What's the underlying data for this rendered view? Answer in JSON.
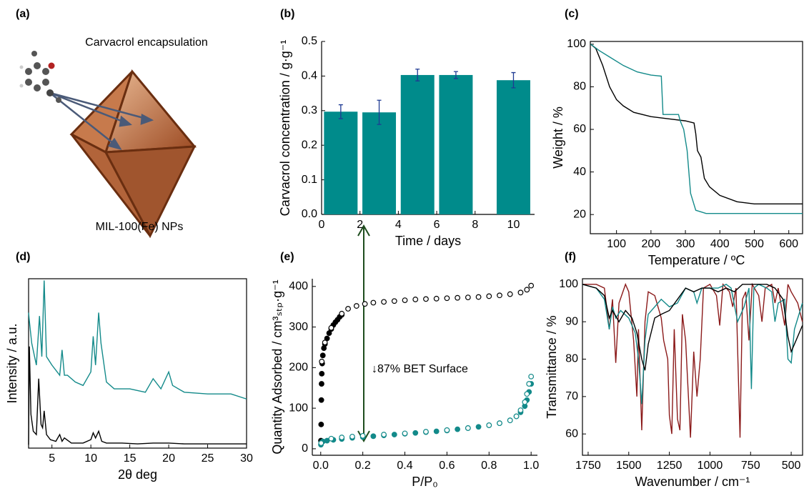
{
  "illustration": {
    "label": "(a)",
    "title": "Carvacrol encapsulation",
    "caption": "MIL-100(Fe) NPs"
  },
  "chart_data": [
    {
      "type": "bar",
      "label": "(b)",
      "xlabel": "Time / days",
      "ylabel": "Carvacrol concentration / g·g⁻¹",
      "x": [
        1,
        3,
        5,
        7,
        10
      ],
      "values": [
        0.297,
        0.295,
        0.403,
        0.403,
        0.388
      ],
      "errors": [
        0.02,
        0.035,
        0.017,
        0.01,
        0.022
      ],
      "color": "#008b8b",
      "error_color": "#1f3a93",
      "xlim": [
        0,
        11.1
      ],
      "xticks": [
        0,
        2,
        4,
        6,
        8,
        10
      ],
      "ylim": [
        0,
        0.5
      ],
      "yticks": [
        {
          "value": 0,
          "label": "0.0"
        },
        0.1,
        0.2,
        0.3,
        0.4,
        0.5
      ],
      "frame": false
    },
    {
      "type": "line",
      "label": "(c)",
      "xlabel": "Temperature / ºC",
      "ylabel": "Weight / %",
      "series": [
        {
          "color": "#000000",
          "x": [
            25,
            40,
            60,
            80,
            100,
            120,
            150,
            200,
            250,
            300,
            325,
            330,
            335,
            345,
            355,
            370,
            400,
            450,
            500,
            640
          ],
          "values": [
            100,
            98,
            90,
            80,
            74,
            71,
            68,
            66,
            65,
            64,
            63,
            58,
            50,
            47,
            37,
            33,
            29,
            26,
            25,
            25
          ]
        },
        {
          "color": "#138a8a",
          "x": [
            25,
            50,
            80,
            120,
            160,
            200,
            230,
            235,
            280,
            285,
            295,
            305,
            315,
            330,
            360,
            640
          ],
          "values": [
            100,
            97,
            94,
            90,
            87,
            85.5,
            85,
            67,
            67,
            64,
            60,
            50,
            30,
            22,
            20.5,
            20.5
          ]
        }
      ],
      "xlim": [
        24,
        640
      ],
      "xticks": [
        100,
        200,
        300,
        400,
        500,
        600
      ],
      "ylim": [
        11,
        101.3
      ],
      "yticks": [
        20,
        40,
        60,
        80,
        100
      ],
      "frame": true
    },
    {
      "type": "line",
      "label": "(d)",
      "xlabel": "2θ deg",
      "ylabel": "Intensity / a.u.",
      "series": [
        {
          "color": "#138a8a",
          "x": [
            2,
            2.1,
            2.4,
            3.0,
            3.4,
            3.7,
            4.0,
            4.3,
            5,
            6,
            6.3,
            6.6,
            7,
            8,
            9,
            10,
            10.3,
            10.6,
            11,
            11.3,
            12,
            13,
            15,
            17,
            18,
            19,
            20,
            20.5,
            22,
            25,
            28,
            30
          ],
          "values": [
            80,
            75,
            62,
            49,
            78,
            54,
            99,
            54,
            49,
            43,
            58,
            43,
            43,
            39,
            37,
            45,
            66,
            49,
            80,
            62,
            39,
            35,
            35,
            33,
            41,
            35,
            45,
            37,
            33,
            32,
            32,
            29
          ]
        },
        {
          "color": "#000000",
          "x": [
            2,
            2.1,
            2.3,
            2.6,
            3.0,
            3.3,
            3.6,
            3.8,
            4.0,
            4.3,
            4.8,
            5.5,
            6.0,
            6.3,
            6.6,
            7.5,
            9,
            10.0,
            10.3,
            10.6,
            11.0,
            11.4,
            12,
            14,
            16,
            18,
            20,
            22,
            25,
            28,
            30
          ],
          "values": [
            2,
            60,
            20,
            10,
            8,
            41,
            14,
            12,
            22,
            8,
            5,
            4,
            8,
            4,
            6,
            3,
            3,
            5,
            9,
            6,
            10,
            4,
            3,
            3,
            2.5,
            3,
            3,
            2.5,
            2.5,
            2.5,
            2.5
          ]
        }
      ],
      "xlim": [
        2,
        30
      ],
      "xticks": [
        5,
        10,
        15,
        20,
        25,
        30
      ],
      "ylim": [
        0,
        100
      ],
      "frame": true
    },
    {
      "type": "scatter",
      "label": "(e)",
      "xlabel": "P/P₀",
      "ylabel": "Quantity Adsorbed / cm³ₛₜₚ·g⁻¹",
      "annotation": "↓87% BET Surface",
      "annotation_color": "#1e4d1e",
      "series": [
        {
          "color": "#000000",
          "marker": "filled",
          "x": [
            0.001,
            0.002,
            0.003,
            0.004,
            0.005,
            0.007,
            0.01,
            0.015,
            0.02,
            0.03,
            0.04,
            0.05,
            0.06,
            0.07,
            0.08,
            0.09,
            0.1
          ],
          "values": [
            20,
            60,
            120,
            160,
            185,
            210,
            230,
            248,
            258,
            272,
            285,
            295,
            305,
            312,
            318,
            325,
            330
          ]
        },
        {
          "color": "#000000",
          "marker": "open",
          "x": [
            0.005,
            0.02,
            0.05,
            0.1,
            0.13,
            0.17,
            0.21,
            0.25,
            0.3,
            0.35,
            0.4,
            0.45,
            0.5,
            0.55,
            0.6,
            0.65,
            0.7,
            0.75,
            0.8,
            0.85,
            0.9,
            0.95,
            0.98,
            1.0
          ],
          "values": [
            215,
            262,
            298,
            333,
            345,
            352,
            357,
            360,
            362,
            364,
            366,
            368,
            369,
            370,
            371,
            372,
            373,
            374,
            376,
            378,
            381,
            385,
            392,
            402
          ]
        },
        {
          "color": "#138a8a",
          "marker": "filled",
          "x": [
            0.001,
            0.003,
            0.01,
            0.03,
            0.06,
            0.1,
            0.15,
            0.2,
            0.25,
            0.3,
            0.35,
            0.4,
            0.45,
            0.5,
            0.55,
            0.6,
            0.65,
            0.7,
            0.75,
            0.8,
            0.85,
            0.9,
            0.93,
            0.95,
            0.97,
            0.98,
            0.99,
            1.0
          ],
          "values": [
            10,
            15,
            18,
            20,
            22,
            24,
            27,
            29,
            31,
            33,
            35,
            37,
            39,
            41,
            43,
            45,
            48,
            51,
            54,
            58,
            63,
            70,
            80,
            90,
            105,
            120,
            140,
            160
          ]
        },
        {
          "color": "#138a8a",
          "marker": "open",
          "x": [
            0.002,
            0.05,
            0.1,
            0.15,
            0.2,
            0.3,
            0.4,
            0.5,
            0.6,
            0.7,
            0.8,
            0.85,
            0.9,
            0.93,
            0.95,
            0.97,
            0.98,
            0.99,
            1.0
          ],
          "values": [
            14,
            25,
            28,
            30,
            32,
            35,
            38,
            42,
            46,
            51,
            58,
            63,
            70,
            80,
            95,
            115,
            135,
            160,
            178
          ]
        }
      ],
      "xlim": [
        -0.04,
        1.03
      ],
      "xticks": [
        {
          "value": 0,
          "label": "0.0"
        },
        0.2,
        0.4,
        0.6,
        0.8,
        {
          "value": 1,
          "label": "1.0"
        }
      ],
      "ylim": [
        -16,
        419
      ],
      "yticks": [
        0,
        100,
        200,
        300,
        400
      ],
      "frame": false
    },
    {
      "type": "line",
      "label": "(f)",
      "xlabel": "Wavenumber / cm⁻¹",
      "ylabel": "Transmittance / %",
      "series": [
        {
          "color": "#8b1a1a",
          "x": [
            1785,
            1700,
            1650,
            1620,
            1600,
            1580,
            1560,
            1520,
            1500,
            1470,
            1450,
            1440,
            1420,
            1400,
            1380,
            1340,
            1300,
            1285,
            1260,
            1250,
            1235,
            1220,
            1200,
            1185,
            1170,
            1150,
            1120,
            1100,
            1080,
            1060,
            1040,
            1000,
            960,
            940,
            920,
            880,
            860,
            840,
            815,
            800,
            780,
            760,
            740,
            700,
            680,
            660,
            620,
            600,
            580,
            540,
            520,
            500,
            460,
            431
          ],
          "values": [
            100,
            100,
            99,
            88,
            96,
            79,
            95,
            100,
            98,
            85,
            70,
            88,
            61,
            90,
            98,
            97,
            91,
            85,
            80,
            65,
            60,
            88,
            64,
            61,
            92,
            85,
            59,
            82,
            70,
            80,
            99,
            100,
            97,
            89,
            100,
            98,
            94,
            99,
            59,
            96,
            98,
            85,
            100,
            97,
            90,
            99,
            100,
            95,
            99,
            89,
            100,
            98,
            95,
            90
          ]
        },
        {
          "color": "#138a8a",
          "x": [
            1785,
            1700,
            1650,
            1620,
            1600,
            1580,
            1550,
            1500,
            1460,
            1440,
            1420,
            1400,
            1380,
            1300,
            1250,
            1200,
            1150,
            1100,
            1080,
            1050,
            1000,
            950,
            900,
            870,
            830,
            790,
            760,
            745,
            730,
            700,
            650,
            620,
            600,
            580,
            540,
            520,
            500,
            480,
            431
          ],
          "values": [
            100,
            99,
            96,
            88,
            94,
            91,
            93,
            91,
            87,
            80,
            68,
            85,
            92,
            96,
            94,
            95,
            99,
            98,
            95,
            99,
            99,
            99,
            100,
            99,
            90,
            94,
            99,
            72,
            99,
            100,
            99,
            98,
            90,
            95,
            96,
            80,
            79,
            88,
            95
          ]
        },
        {
          "color": "#000000",
          "x": [
            1785,
            1700,
            1650,
            1620,
            1600,
            1560,
            1520,
            1480,
            1450,
            1420,
            1400,
            1380,
            1340,
            1300,
            1250,
            1200,
            1150,
            1100,
            1050,
            1000,
            950,
            900,
            850,
            800,
            760,
            700,
            650,
            600,
            550,
            520,
            500,
            480,
            431
          ],
          "values": [
            100,
            99,
            97,
            91,
            93,
            90,
            93,
            91,
            87,
            80,
            77,
            84,
            91,
            92,
            93,
            96,
            99,
            98,
            99,
            99,
            98,
            99,
            98,
            100,
            100,
            100,
            100,
            99,
            96,
            86,
            82,
            84,
            89
          ]
        }
      ],
      "xlim": [
        1785,
        430
      ],
      "xticks": [
        1750,
        1500,
        1250,
        1000,
        750,
        500
      ],
      "ylim": [
        54.3,
        101.5
      ],
      "yticks": [
        60,
        70,
        80,
        90,
        100
      ],
      "frame": true
    }
  ]
}
